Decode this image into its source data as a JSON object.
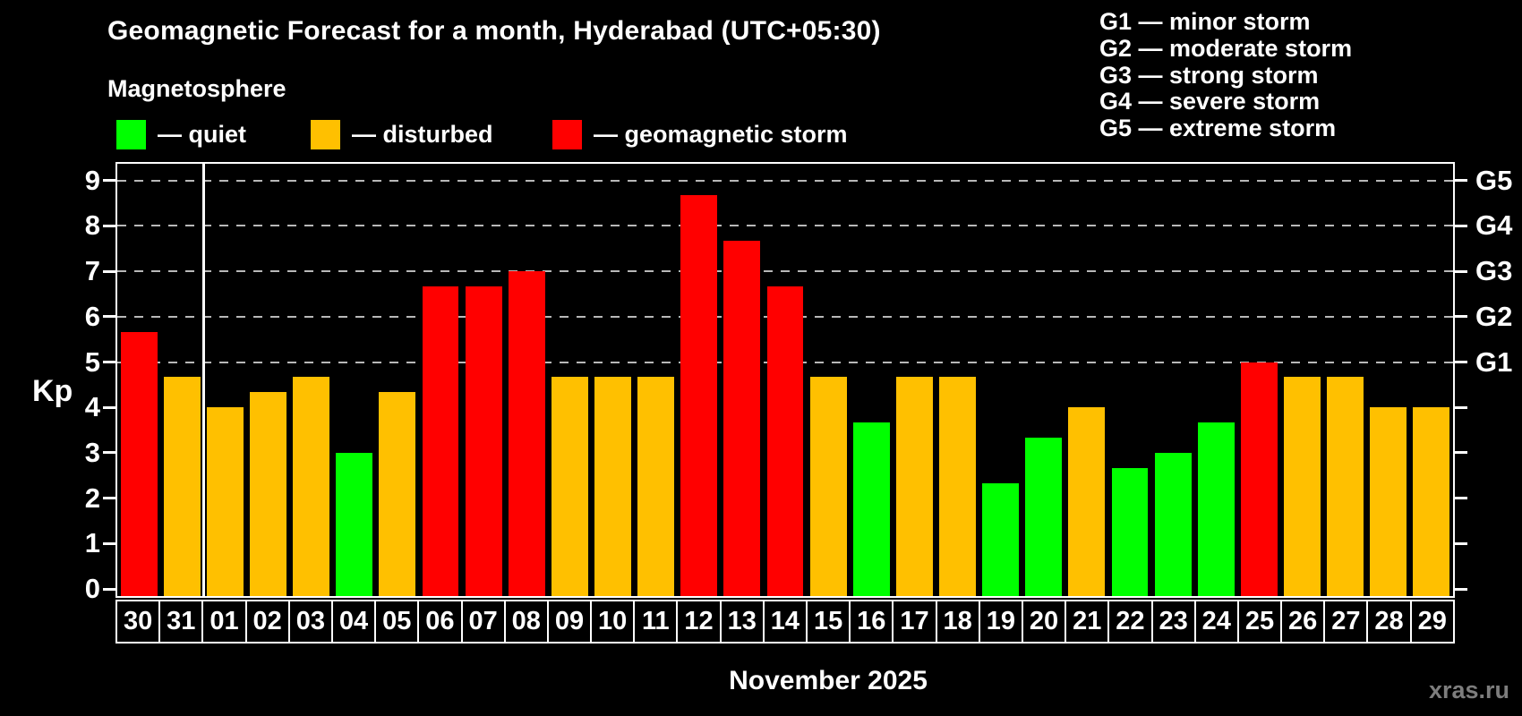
{
  "title": "Geomagnetic Forecast for a month, Hyderabad (UTC+05:30)",
  "subtitle": "Magnetosphere",
  "legend": {
    "quiet_label": "— quiet",
    "disturbed_label": "— disturbed",
    "storm_label": "— geomagnetic storm"
  },
  "storm_scale_legend": [
    "G1 — minor storm",
    "G2 — moderate storm",
    "G3 — strong storm",
    "G4 — severe storm",
    "G5 — extreme storm"
  ],
  "axis": {
    "y_label": "Kp",
    "y_ticks": [
      0,
      1,
      2,
      3,
      4,
      5,
      6,
      7,
      8,
      9
    ],
    "right_labels": [
      {
        "kp": 9,
        "label": "G5"
      },
      {
        "kp": 8,
        "label": "G4"
      },
      {
        "kp": 7,
        "label": "G3"
      },
      {
        "kp": 6,
        "label": "G2"
      },
      {
        "kp": 5,
        "label": "G1"
      }
    ]
  },
  "x_axis": {
    "month_label": "November 2025"
  },
  "watermark": "xras.ru",
  "colors": {
    "quiet": "#00ff00",
    "disturbed": "#ffc000",
    "storm": "#ff0000",
    "frame": "#ffffff",
    "grid": "#b8b8b8",
    "background": "#000000",
    "watermark": "#7d7d7d"
  },
  "chart_data": {
    "type": "bar",
    "title": "Geomagnetic Forecast for a month, Hyderabad (UTC+05:30)",
    "xlabel": "November 2025",
    "ylabel": "Kp",
    "ylim": [
      0,
      9.4
    ],
    "grid": "dashed horizontal lines at Kp 5-9 only",
    "legend_position": "top-left colors, top-right G-scale",
    "categories": [
      "30",
      "31",
      "01",
      "02",
      "03",
      "04",
      "05",
      "06",
      "07",
      "08",
      "09",
      "10",
      "11",
      "12",
      "13",
      "14",
      "15",
      "16",
      "17",
      "18",
      "19",
      "20",
      "21",
      "22",
      "23",
      "24",
      "25",
      "26",
      "27",
      "28",
      "29"
    ],
    "values": [
      5.67,
      4.67,
      4,
      4.33,
      4.67,
      3,
      4.33,
      6.67,
      6.67,
      7,
      4.67,
      4.67,
      4.67,
      8.67,
      7.67,
      6.67,
      4.67,
      3.67,
      4.67,
      4.67,
      2.33,
      3.33,
      4,
      2.67,
      3,
      3.67,
      5,
      4.67,
      4.67,
      4,
      4
    ],
    "statuses": [
      "storm",
      "disturbed",
      "disturbed",
      "disturbed",
      "disturbed",
      "quiet",
      "disturbed",
      "storm",
      "storm",
      "storm",
      "disturbed",
      "disturbed",
      "disturbed",
      "storm",
      "storm",
      "storm",
      "disturbed",
      "quiet",
      "disturbed",
      "disturbed",
      "quiet",
      "quiet",
      "disturbed",
      "quiet",
      "quiet",
      "quiet",
      "storm",
      "disturbed",
      "disturbed",
      "disturbed",
      "disturbed"
    ],
    "gridlines_kp": [
      5,
      6,
      7,
      8,
      9
    ],
    "month_boundary_index": 2
  }
}
